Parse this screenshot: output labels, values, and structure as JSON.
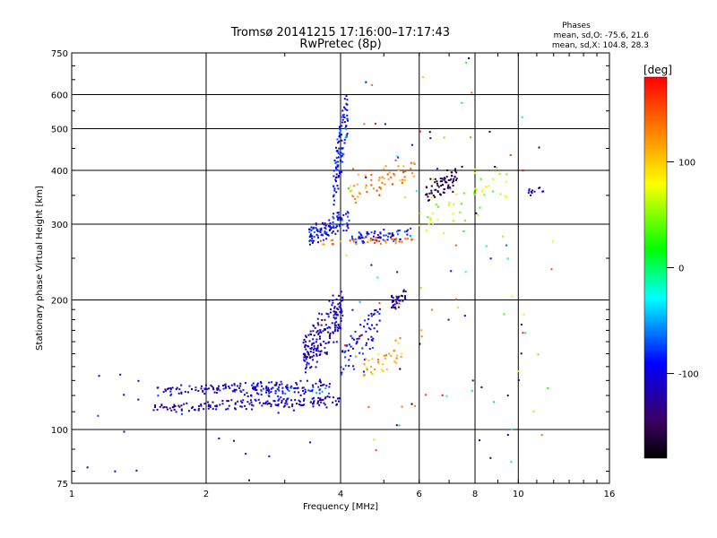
{
  "chart_data": {
    "type": "scatter",
    "title": "Tromsø 20141215 17:16:00–17:17:43",
    "subtitle": "RwPretec (8p)",
    "xlabel": "Frequency [MHz]",
    "ylabel": "Stationary phase Virtual Height [km]",
    "x_scale": "log",
    "y_scale": "log",
    "xlim": [
      1,
      16
    ],
    "ylim": [
      75,
      750
    ],
    "x_ticks": [
      1,
      2,
      4,
      6,
      8,
      10,
      16
    ],
    "y_ticks": [
      75,
      100,
      200,
      300,
      400,
      500,
      600,
      750
    ],
    "grid": true,
    "stats": {
      "heading": "Phases",
      "line_o": "mean, sd,O: -75.6, 21.6",
      "line_x": "mean, sd,X: 104.8, 28.3"
    },
    "colorbar": {
      "label": "[deg]",
      "ticks": [
        100,
        0,
        -100
      ],
      "range": [
        -180,
        180
      ],
      "colormap": "rainbow",
      "colors": [
        "#000000",
        "#3c0064",
        "#0000ff",
        "#00ffff",
        "#00ff00",
        "#ffff00",
        "#ff8000",
        "#ff0000"
      ]
    },
    "series": [
      {
        "traces": [
          {
            "x": [
              1.52,
              4.0
            ],
            "y": [
              111,
              118
            ],
            "phase": -100,
            "n": 160,
            "spread": 0.018
          },
          {
            "x": [
              1.55,
              3.8
            ],
            "y": [
              122,
              128
            ],
            "phase": -95,
            "n": 150,
            "spread": 0.02
          },
          {
            "x": [
              2.3,
              3.9
            ],
            "y": [
              120,
              125
            ],
            "phase": -70,
            "n": 40,
            "spread": 0.02
          },
          {
            "x": [
              3.3,
              4.05
            ],
            "y": [
              130,
              215
            ],
            "phase": -100,
            "n": 190,
            "spread": 0.05
          },
          {
            "x": [
              4.0,
              4.9
            ],
            "y": [
              130,
              195
            ],
            "phase": -90,
            "n": 70,
            "spread": 0.05
          },
          {
            "x": [
              4.5,
              5.5
            ],
            "y": [
              130,
              160
            ],
            "phase": 110,
            "n": 40,
            "spread": 0.04
          },
          {
            "x": [
              5.2,
              5.6
            ],
            "y": [
              193,
              206
            ],
            "phase": -105,
            "n": 35,
            "spread": 0.03
          },
          {
            "x": [
              3.4,
              4.2
            ],
            "y": [
              272,
              320
            ],
            "phase": -85,
            "n": 110,
            "spread": 0.03
          },
          {
            "x": [
              3.85,
              4.15
            ],
            "y": [
              320,
              630
            ],
            "phase": -75,
            "n": 110,
            "spread": 0.03
          },
          {
            "x": [
              4.2,
              5.8
            ],
            "y": [
              272,
              290
            ],
            "phase": -80,
            "n": 70,
            "spread": 0.025
          },
          {
            "x": [
              3.6,
              5.8
            ],
            "y": [
              270,
              278
            ],
            "phase": 140,
            "n": 40,
            "spread": 0.015
          },
          {
            "x": [
              4.2,
              5.9
            ],
            "y": [
              340,
              420
            ],
            "phase": 130,
            "n": 60,
            "spread": 0.05
          },
          {
            "x": [
              6.2,
              7.3
            ],
            "y": [
              340,
              400
            ],
            "phase": -150,
            "n": 70,
            "spread": 0.04
          },
          {
            "x": [
              6.0,
              9.5
            ],
            "y": [
              280,
              420
            ],
            "phase": 60,
            "n": 50,
            "spread": 0.06
          },
          {
            "x": [
              10.5,
              11.5
            ],
            "y": [
              352,
              362
            ],
            "phase": -100,
            "n": 12,
            "spread": 0.015
          },
          {
            "x": [
              4.0,
              12.0
            ],
            "y": [
              78,
              620
            ],
            "phase": 0,
            "n": 110,
            "spread": 0.3
          },
          {
            "x": [
              1.02,
              3.5
            ],
            "y": [
              76,
              140
            ],
            "phase": -90,
            "n": 25,
            "spread": 0.15
          }
        ]
      }
    ]
  }
}
